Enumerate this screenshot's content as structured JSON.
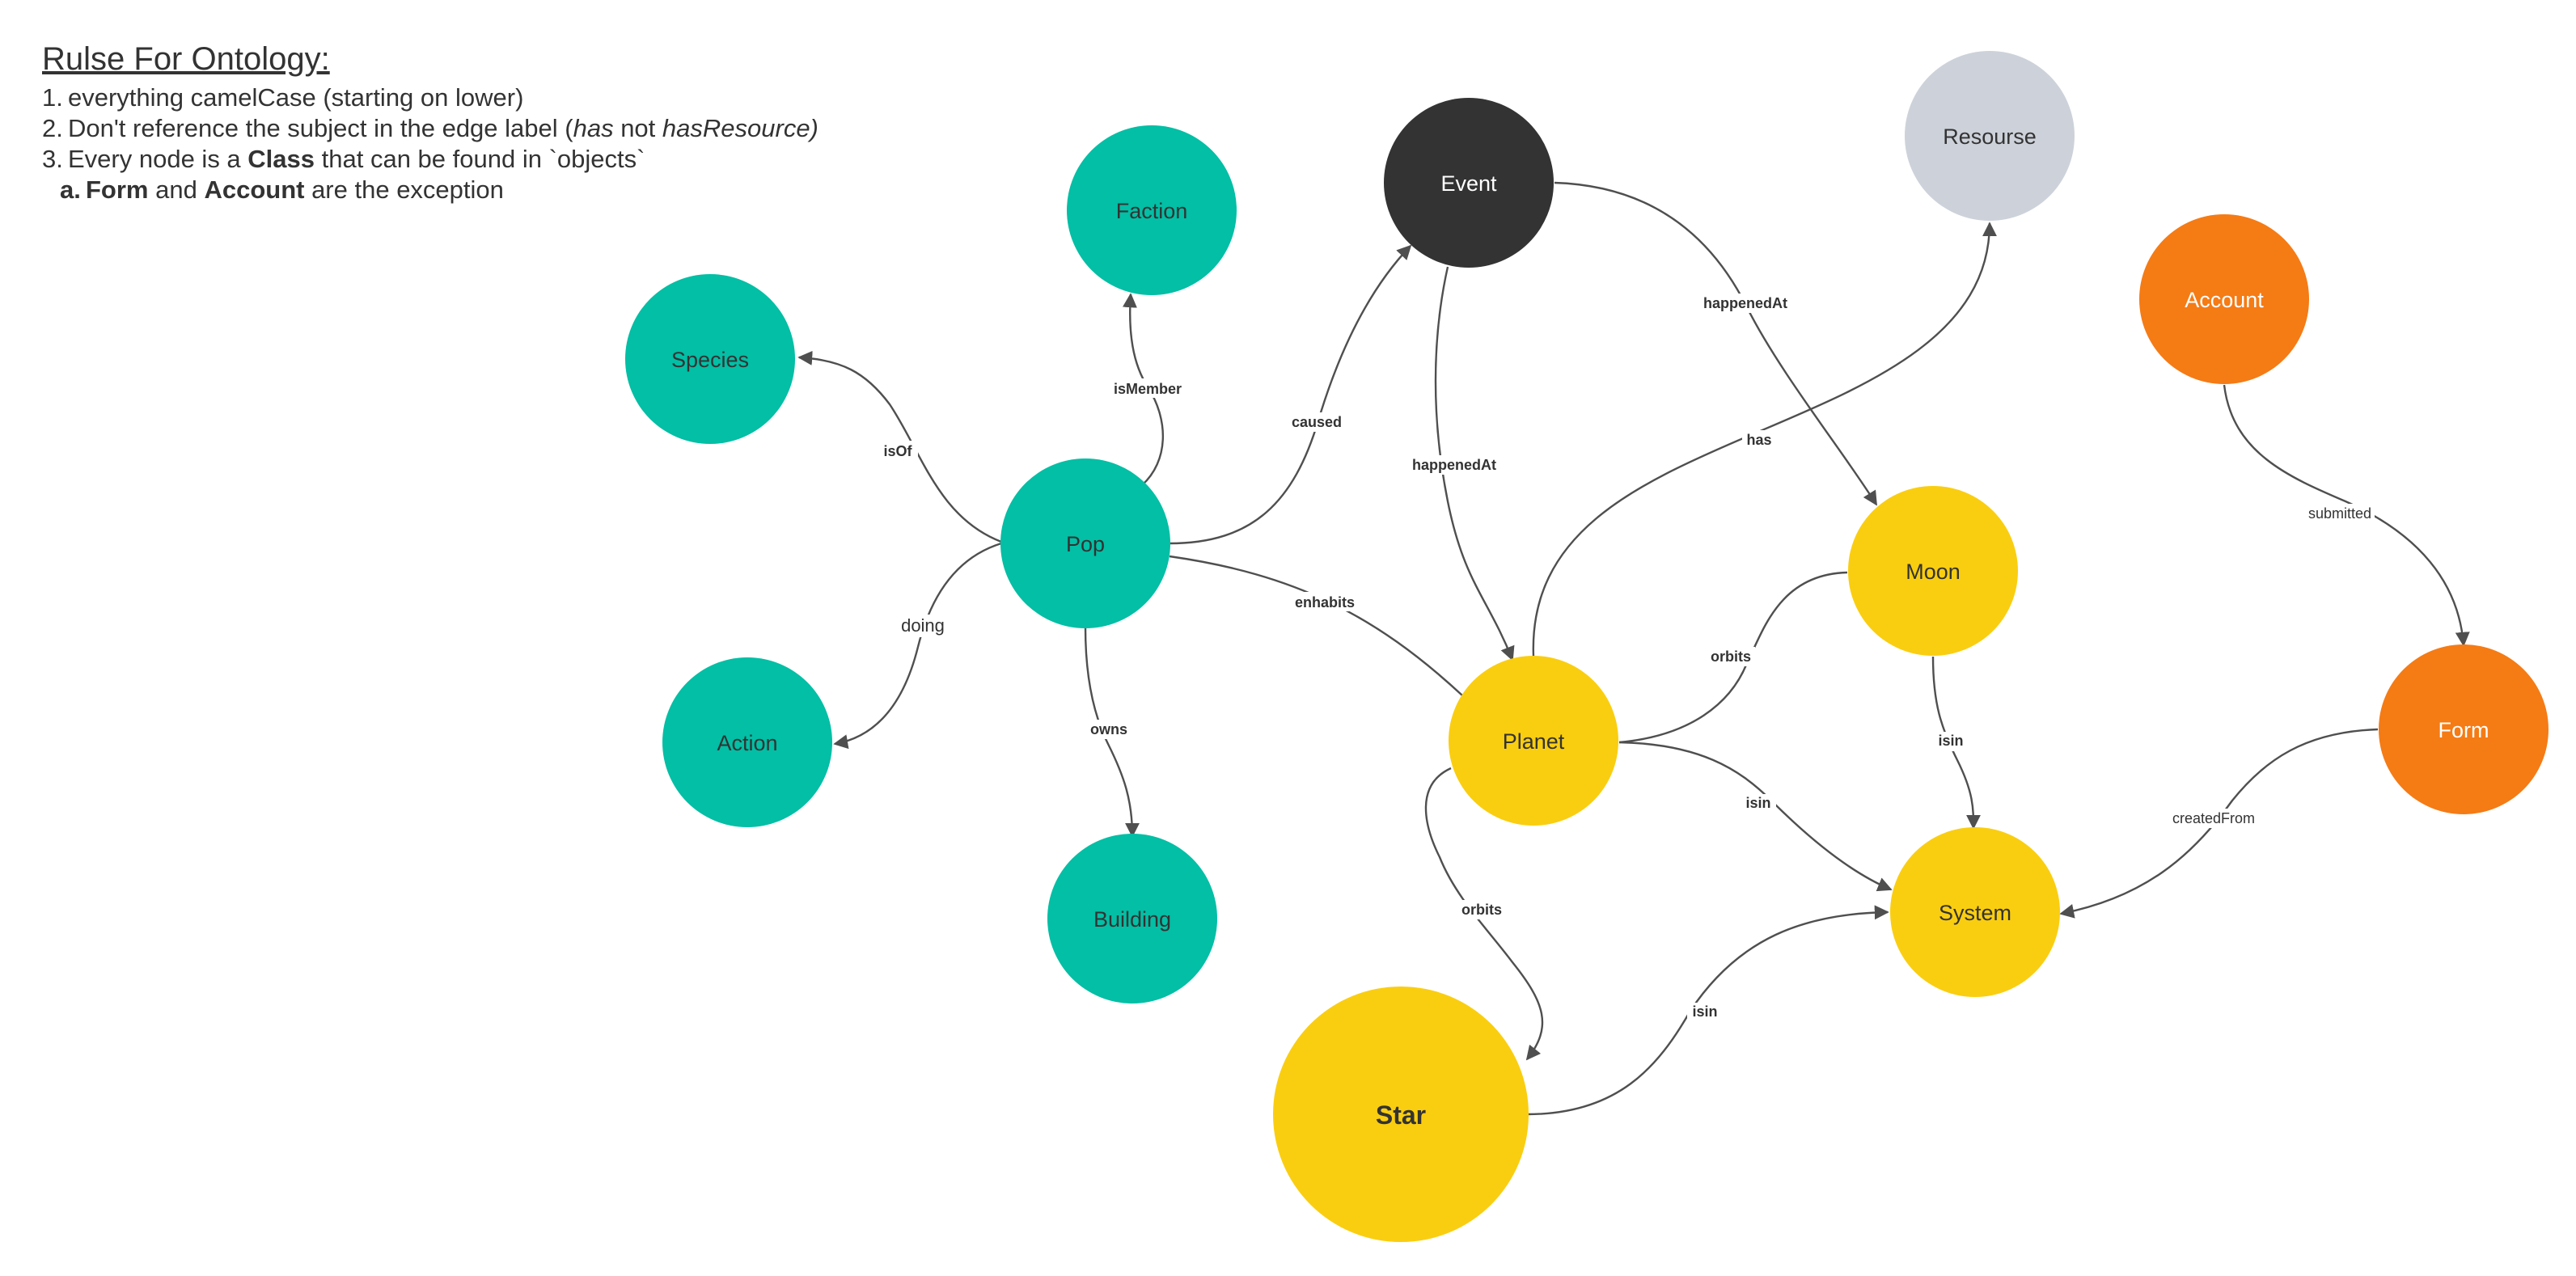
{
  "rules": {
    "title": "Rulse For Ontology:",
    "items": [
      {
        "num": "1.",
        "text": "everything camelCase (starting on lower)"
      },
      {
        "num": "2.",
        "pre": "Don't reference the subject in the edge label (",
        "em1": "has",
        "mid": " not ",
        "em2": "hasResource)"
      },
      {
        "num": "3.",
        "pre": "Every node is a ",
        "strong": "Class",
        "post": " that can be found in `objects`"
      }
    ],
    "subitem": {
      "num": "a.",
      "strong1": "Form",
      "mid": " and ",
      "strong2": "Account",
      "post": " are the exception"
    }
  },
  "colors": {
    "teal": "#02BFA5",
    "dark": "#333333",
    "gray": "#CDD2DA",
    "orange": "#F57B15",
    "yellow": "#FACE10",
    "edge": "#4f4f4f"
  },
  "nodes": [
    {
      "id": "faction",
      "label": "Faction",
      "color": "teal"
    },
    {
      "id": "species",
      "label": "Species",
      "color": "teal"
    },
    {
      "id": "pop",
      "label": "Pop",
      "color": "teal"
    },
    {
      "id": "action",
      "label": "Action",
      "color": "teal"
    },
    {
      "id": "building",
      "label": "Building",
      "color": "teal"
    },
    {
      "id": "event",
      "label": "Event",
      "color": "dark"
    },
    {
      "id": "resourse",
      "label": "Resourse",
      "color": "gray"
    },
    {
      "id": "account",
      "label": "Account",
      "color": "orange"
    },
    {
      "id": "form",
      "label": "Form",
      "color": "orange"
    },
    {
      "id": "moon",
      "label": "Moon",
      "color": "yellow"
    },
    {
      "id": "planet",
      "label": "Planet",
      "color": "yellow"
    },
    {
      "id": "system",
      "label": "System",
      "color": "yellow"
    },
    {
      "id": "star",
      "label": "Star",
      "color": "yellow"
    }
  ],
  "edges": [
    {
      "id": "pop-species",
      "from": "Pop",
      "to": "Species",
      "label": "isOf"
    },
    {
      "id": "pop-faction",
      "from": "Pop",
      "to": "Faction",
      "label": "isMember"
    },
    {
      "id": "pop-event",
      "from": "Pop",
      "to": "Event",
      "label": "caused"
    },
    {
      "id": "pop-action",
      "from": "Pop",
      "to": "Action",
      "label": "doing"
    },
    {
      "id": "pop-building",
      "from": "Pop",
      "to": "Building",
      "label": "owns"
    },
    {
      "id": "pop-planet",
      "from": "Pop",
      "to": "Planet",
      "label": "enhabits"
    },
    {
      "id": "event-planet",
      "from": "Event",
      "to": "Planet",
      "label": "happenedAt"
    },
    {
      "id": "event-moon",
      "from": "Event",
      "to": "Moon",
      "label": "happenedAt"
    },
    {
      "id": "planet-resourse",
      "from": "Planet",
      "to": "Resourse",
      "label": "has"
    },
    {
      "id": "planet-moon",
      "from": "Moon",
      "to": "Planet",
      "label": "orbits"
    },
    {
      "id": "moon-system",
      "from": "Moon",
      "to": "System",
      "label": "isin"
    },
    {
      "id": "planet-system",
      "from": "Planet",
      "to": "System",
      "label": "isin"
    },
    {
      "id": "planet-star",
      "from": "Planet",
      "to": "Star",
      "label": "orbits"
    },
    {
      "id": "star-system",
      "from": "Star",
      "to": "System",
      "label": "isin"
    },
    {
      "id": "account-form",
      "from": "Account",
      "to": "Form",
      "label": "submitted"
    },
    {
      "id": "form-system",
      "from": "Form",
      "to": "System",
      "label": "createdFrom"
    }
  ]
}
